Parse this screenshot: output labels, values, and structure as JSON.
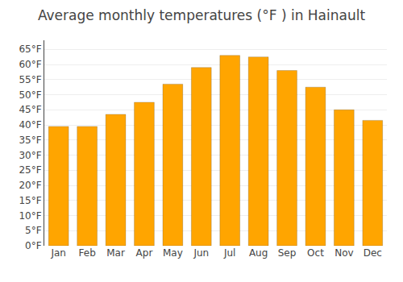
{
  "chart_data": {
    "type": "bar",
    "title": "Average monthly temperatures (°F ) in Hainault",
    "categories": [
      "Jan",
      "Feb",
      "Mar",
      "Apr",
      "May",
      "Jun",
      "Jul",
      "Aug",
      "Sep",
      "Oct",
      "Nov",
      "Dec"
    ],
    "values": [
      39.5,
      39.5,
      43.5,
      47.5,
      53.5,
      59.0,
      63.0,
      62.5,
      58.0,
      52.5,
      45.0,
      41.5
    ],
    "color": "#FFA500",
    "ylim": [
      0,
      68
    ],
    "yticks": [
      {
        "value": 0,
        "label": "0°F"
      },
      {
        "value": 5,
        "label": "5°F"
      },
      {
        "value": 10,
        "label": "10°F"
      },
      {
        "value": 15,
        "label": "15°F"
      },
      {
        "value": 20,
        "label": "20°F"
      },
      {
        "value": 25,
        "label": "25°F"
      },
      {
        "value": 30,
        "label": "30°F"
      },
      {
        "value": 35,
        "label": "35°F"
      },
      {
        "value": 40,
        "label": "40°F"
      },
      {
        "value": 45,
        "label": "45°F"
      },
      {
        "value": 50,
        "label": "50°F"
      },
      {
        "value": 55,
        "label": "55°F"
      },
      {
        "value": 60,
        "label": "60°F"
      },
      {
        "value": 65,
        "label": "65°F"
      }
    ],
    "grid": true
  }
}
